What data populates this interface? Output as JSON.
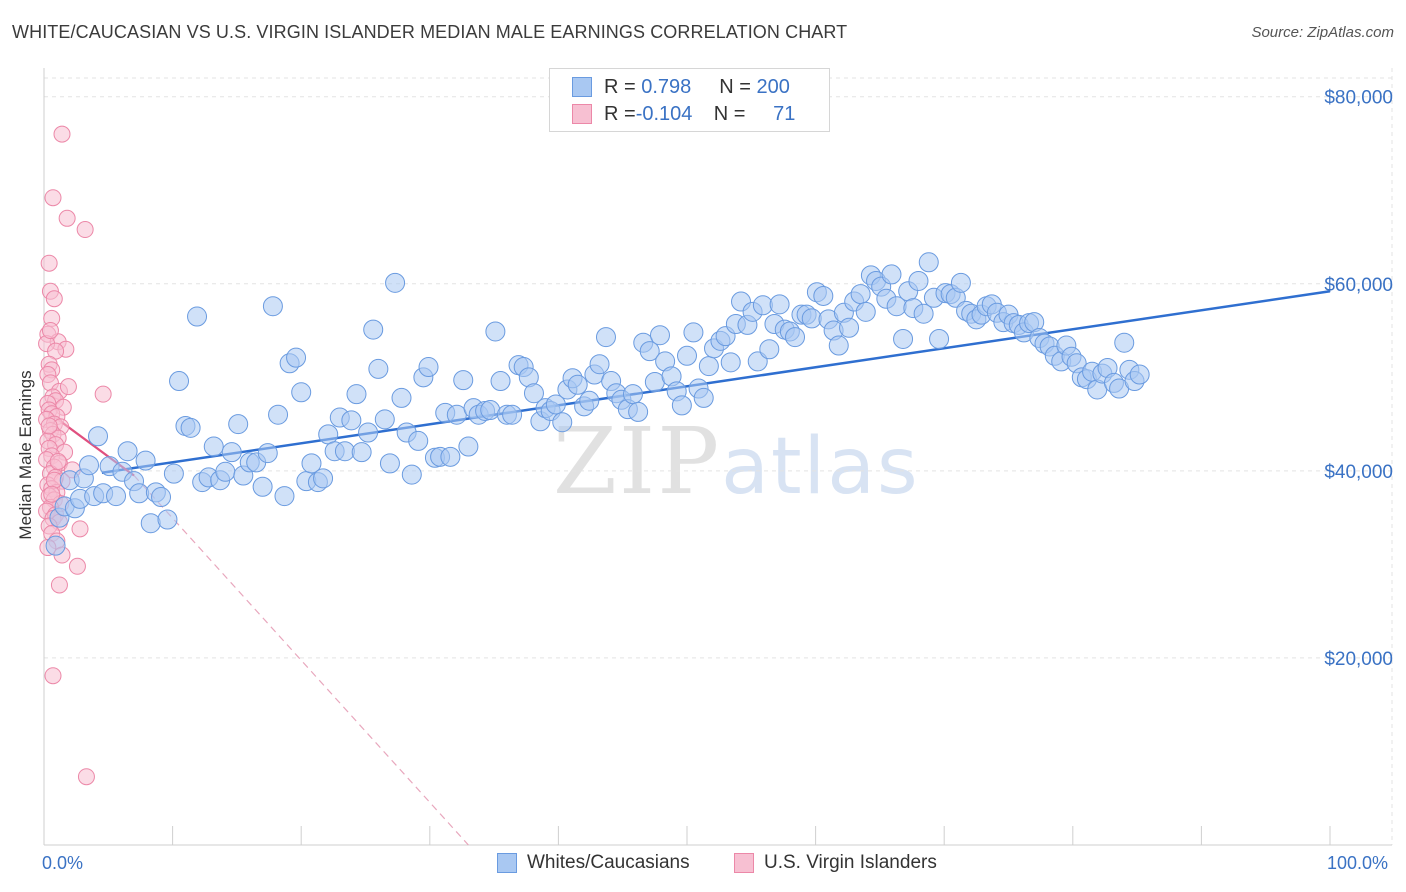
{
  "title": "WHITE/CAUCASIAN VS U.S. VIRGIN ISLANDER MEDIAN MALE EARNINGS CORRELATION CHART",
  "source": "Source: ZipAtlas.com",
  "watermark": {
    "zip": "ZIP",
    "atlas": "atlas"
  },
  "legend": {
    "rows": [
      {
        "r_label": "R = ",
        "r_value": "0.798",
        "n_label": "N = ",
        "n_value": "200",
        "color": "#a9c8f2",
        "border": "#6a9be0"
      },
      {
        "r_label": "R = ",
        "r_value": "-0.104",
        "n_label": "N = ",
        "n_value": "71",
        "color": "#f7c0d2",
        "border": "#ec88a8"
      }
    ]
  },
  "bottom_legend": {
    "series1": {
      "label": "Whites/Caucasians",
      "color": "#a9c8f2",
      "border": "#6a9be0"
    },
    "series2": {
      "label": "U.S. Virgin Islanders",
      "color": "#f7c0d2",
      "border": "#ec88a8"
    }
  },
  "chart_data": {
    "type": "scatter",
    "title": "WHITE/CAUCASIAN VS U.S. VIRGIN ISLANDER MEDIAN MALE EARNINGS CORRELATION CHART",
    "xlabel": "",
    "ylabel": "Median Male Earnings",
    "xlim": [
      0,
      100
    ],
    "ylim": [
      0,
      82000
    ],
    "x_tick_labels": [
      "0.0%",
      "100.0%"
    ],
    "y_ticks": [
      20000,
      40000,
      60000,
      80000
    ],
    "y_tick_labels": [
      "$20,000",
      "$40,000",
      "$60,000",
      "$80,000"
    ],
    "grid": true,
    "series": [
      {
        "name": "Whites/Caucasians",
        "color": "#a9c8f2",
        "stroke": "#6a9be0",
        "r": 0.798,
        "n": 200,
        "trend": {
          "x1": 4.5,
          "y1": 39800,
          "x2": 100,
          "y2": 59200
        },
        "points": [
          [
            0.9,
            32000
          ],
          [
            1.2,
            35000
          ],
          [
            1.6,
            36200
          ],
          [
            2.0,
            39000
          ],
          [
            2.4,
            36000
          ],
          [
            2.8,
            37000
          ],
          [
            3.1,
            39200
          ],
          [
            3.5,
            40600
          ],
          [
            3.9,
            37300
          ],
          [
            4.2,
            43700
          ],
          [
            4.6,
            37600
          ],
          [
            5.1,
            40500
          ],
          [
            5.6,
            37300
          ],
          [
            6.1,
            39900
          ],
          [
            6.5,
            42100
          ],
          [
            7.0,
            38900
          ],
          [
            7.4,
            37600
          ],
          [
            7.9,
            41100
          ],
          [
            8.3,
            34400
          ],
          [
            8.7,
            37700
          ],
          [
            9.1,
            37200
          ],
          [
            9.6,
            34800
          ],
          [
            10.1,
            39700
          ],
          [
            10.5,
            49600
          ],
          [
            11.0,
            44800
          ],
          [
            11.4,
            44600
          ],
          [
            11.9,
            56500
          ],
          [
            12.3,
            38800
          ],
          [
            12.8,
            39300
          ],
          [
            13.2,
            42600
          ],
          [
            13.7,
            39000
          ],
          [
            14.1,
            39900
          ],
          [
            14.6,
            42000
          ],
          [
            15.1,
            45000
          ],
          [
            15.5,
            39500
          ],
          [
            16.0,
            40900
          ],
          [
            16.5,
            40900
          ],
          [
            17.0,
            38300
          ],
          [
            17.4,
            41900
          ],
          [
            17.8,
            57600
          ],
          [
            18.2,
            46000
          ],
          [
            18.7,
            37300
          ],
          [
            19.1,
            51500
          ],
          [
            19.6,
            52100
          ],
          [
            20.0,
            48400
          ],
          [
            20.4,
            38900
          ],
          [
            20.8,
            40800
          ],
          [
            21.3,
            38800
          ],
          [
            21.7,
            39200
          ],
          [
            22.1,
            43900
          ],
          [
            22.6,
            42100
          ],
          [
            23.0,
            45700
          ],
          [
            23.4,
            42100
          ],
          [
            23.9,
            45400
          ],
          [
            24.3,
            48200
          ],
          [
            24.7,
            42000
          ],
          [
            25.2,
            44100
          ],
          [
            25.6,
            55100
          ],
          [
            26.0,
            50900
          ],
          [
            26.5,
            45500
          ],
          [
            26.9,
            40800
          ],
          [
            27.3,
            60100
          ],
          [
            27.8,
            47800
          ],
          [
            28.2,
            44100
          ],
          [
            28.6,
            39600
          ],
          [
            29.1,
            43200
          ],
          [
            29.5,
            50000
          ],
          [
            29.9,
            51100
          ],
          [
            30.4,
            41400
          ],
          [
            30.8,
            41500
          ],
          [
            31.2,
            46200
          ],
          [
            31.6,
            41500
          ],
          [
            32.1,
            46000
          ],
          [
            32.6,
            49700
          ],
          [
            33.0,
            42600
          ],
          [
            33.4,
            46700
          ],
          [
            33.8,
            46000
          ],
          [
            34.3,
            46400
          ],
          [
            34.7,
            46500
          ],
          [
            35.1,
            54900
          ],
          [
            35.5,
            49600
          ],
          [
            36.0,
            46000
          ],
          [
            36.4,
            46000
          ],
          [
            36.9,
            51300
          ],
          [
            37.3,
            51100
          ],
          [
            37.7,
            50000
          ],
          [
            38.1,
            48300
          ],
          [
            38.6,
            45300
          ],
          [
            39.0,
            46700
          ],
          [
            39.4,
            46400
          ],
          [
            39.8,
            47100
          ],
          [
            40.3,
            45200
          ],
          [
            40.7,
            48700
          ],
          [
            41.1,
            49900
          ],
          [
            41.5,
            49200
          ],
          [
            42.0,
            46900
          ],
          [
            42.4,
            47500
          ],
          [
            42.8,
            50300
          ],
          [
            43.2,
            51400
          ],
          [
            43.7,
            54300
          ],
          [
            44.1,
            49600
          ],
          [
            44.5,
            48300
          ],
          [
            44.9,
            47600
          ],
          [
            45.4,
            46600
          ],
          [
            45.8,
            48200
          ],
          [
            46.2,
            46300
          ],
          [
            46.6,
            53700
          ],
          [
            47.1,
            52800
          ],
          [
            47.5,
            49500
          ],
          [
            47.9,
            54500
          ],
          [
            48.3,
            51700
          ],
          [
            48.8,
            50100
          ],
          [
            49.2,
            48500
          ],
          [
            49.6,
            47000
          ],
          [
            50.0,
            52300
          ],
          [
            50.5,
            54800
          ],
          [
            50.9,
            48800
          ],
          [
            51.3,
            47800
          ],
          [
            51.7,
            51200
          ],
          [
            52.1,
            53100
          ],
          [
            52.6,
            53900
          ],
          [
            53.0,
            54400
          ],
          [
            53.4,
            51600
          ],
          [
            53.8,
            55700
          ],
          [
            54.2,
            58100
          ],
          [
            54.7,
            55600
          ],
          [
            55.1,
            57000
          ],
          [
            55.5,
            51700
          ],
          [
            55.9,
            57700
          ],
          [
            56.4,
            53000
          ],
          [
            56.8,
            55700
          ],
          [
            57.2,
            57800
          ],
          [
            57.6,
            55100
          ],
          [
            58.0,
            54900
          ],
          [
            58.4,
            54300
          ],
          [
            58.9,
            56700
          ],
          [
            59.3,
            56700
          ],
          [
            59.7,
            56300
          ],
          [
            60.1,
            59100
          ],
          [
            60.6,
            58700
          ],
          [
            61.0,
            56200
          ],
          [
            61.4,
            55000
          ],
          [
            61.8,
            53400
          ],
          [
            62.2,
            56900
          ],
          [
            62.6,
            55300
          ],
          [
            63.0,
            58100
          ],
          [
            63.5,
            58900
          ],
          [
            63.9,
            57000
          ],
          [
            64.3,
            60900
          ],
          [
            64.7,
            60300
          ],
          [
            65.1,
            59700
          ],
          [
            65.5,
            58400
          ],
          [
            65.9,
            61000
          ],
          [
            66.3,
            57600
          ],
          [
            66.8,
            54100
          ],
          [
            67.2,
            59200
          ],
          [
            67.6,
            57400
          ],
          [
            68.0,
            60300
          ],
          [
            68.4,
            56800
          ],
          [
            68.8,
            62300
          ],
          [
            69.2,
            58500
          ],
          [
            69.6,
            54100
          ],
          [
            70.1,
            59000
          ],
          [
            70.5,
            58900
          ],
          [
            70.9,
            58500
          ],
          [
            71.3,
            60100
          ],
          [
            71.7,
            57100
          ],
          [
            72.1,
            56800
          ],
          [
            72.5,
            56200
          ],
          [
            72.9,
            56700
          ],
          [
            73.3,
            57600
          ],
          [
            73.7,
            57800
          ],
          [
            74.1,
            56900
          ],
          [
            74.6,
            55900
          ],
          [
            75.0,
            56700
          ],
          [
            75.4,
            55800
          ],
          [
            75.8,
            55600
          ],
          [
            76.2,
            54800
          ],
          [
            76.6,
            55800
          ],
          [
            77.0,
            55900
          ],
          [
            77.4,
            54200
          ],
          [
            77.8,
            53600
          ],
          [
            78.2,
            53300
          ],
          [
            78.6,
            52300
          ],
          [
            79.1,
            51700
          ],
          [
            79.5,
            53400
          ],
          [
            79.9,
            52200
          ],
          [
            80.3,
            51500
          ],
          [
            80.7,
            50000
          ],
          [
            81.1,
            49800
          ],
          [
            81.5,
            50600
          ],
          [
            81.9,
            48700
          ],
          [
            82.3,
            50400
          ],
          [
            82.7,
            51000
          ],
          [
            83.2,
            49400
          ],
          [
            83.6,
            48800
          ],
          [
            84.0,
            53700
          ],
          [
            84.4,
            50800
          ],
          [
            84.8,
            49600
          ],
          [
            85.2,
            50300
          ]
        ]
      },
      {
        "name": "U.S. Virgin Islanders",
        "color": "#f7c0d2",
        "stroke": "#ec88a8",
        "r": -0.104,
        "n": 71,
        "trend": {
          "x1": 0.1,
          "y1": 46500,
          "x2": 7.0,
          "y2": 39500
        },
        "trend_dashed": {
          "x1": 7.0,
          "y1": 39500,
          "x2": 33.0,
          "y2": 0
        },
        "points": [
          [
            1.4,
            76000
          ],
          [
            0.7,
            69200
          ],
          [
            1.8,
            67000
          ],
          [
            3.2,
            65800
          ],
          [
            0.4,
            62200
          ],
          [
            0.5,
            59200
          ],
          [
            0.8,
            58400
          ],
          [
            0.6,
            56300
          ],
          [
            0.3,
            54600
          ],
          [
            1.1,
            53800
          ],
          [
            0.2,
            53600
          ],
          [
            1.7,
            53000
          ],
          [
            0.9,
            52800
          ],
          [
            0.4,
            51400
          ],
          [
            0.6,
            50800
          ],
          [
            0.3,
            50300
          ],
          [
            0.5,
            49400
          ],
          [
            1.2,
            48500
          ],
          [
            4.6,
            48200
          ],
          [
            0.7,
            47900
          ],
          [
            0.9,
            47500
          ],
          [
            0.3,
            47200
          ],
          [
            1.5,
            46800
          ],
          [
            0.4,
            46500
          ],
          [
            0.6,
            46100
          ],
          [
            1.0,
            45800
          ],
          [
            0.2,
            45500
          ],
          [
            0.8,
            45000
          ],
          [
            1.3,
            44700
          ],
          [
            0.5,
            44300
          ],
          [
            0.7,
            43900
          ],
          [
            1.1,
            43500
          ],
          [
            0.3,
            43200
          ],
          [
            0.9,
            42800
          ],
          [
            0.4,
            42400
          ],
          [
            1.6,
            42000
          ],
          [
            0.6,
            41600
          ],
          [
            0.2,
            41200
          ],
          [
            1.2,
            40800
          ],
          [
            0.8,
            40400
          ],
          [
            2.2,
            40100
          ],
          [
            0.5,
            39700
          ],
          [
            0.9,
            39300
          ],
          [
            1.4,
            38900
          ],
          [
            0.3,
            38500
          ],
          [
            0.6,
            38100
          ],
          [
            1.0,
            37700
          ],
          [
            0.4,
            37300
          ],
          [
            0.8,
            36900
          ],
          [
            1.3,
            36500
          ],
          [
            0.5,
            36100
          ],
          [
            0.2,
            35700
          ],
          [
            0.9,
            35300
          ],
          [
            0.7,
            34900
          ],
          [
            1.2,
            34500
          ],
          [
            0.4,
            34100
          ],
          [
            2.8,
            33800
          ],
          [
            0.6,
            33300
          ],
          [
            1.0,
            32500
          ],
          [
            0.3,
            31800
          ],
          [
            1.4,
            31000
          ],
          [
            2.6,
            29800
          ],
          [
            1.2,
            27800
          ],
          [
            0.7,
            18100
          ],
          [
            3.3,
            7300
          ],
          [
            0.5,
            55000
          ],
          [
            1.9,
            49000
          ],
          [
            0.4,
            44800
          ],
          [
            1.1,
            41000
          ],
          [
            0.8,
            39000
          ],
          [
            0.6,
            37500
          ]
        ]
      }
    ]
  }
}
